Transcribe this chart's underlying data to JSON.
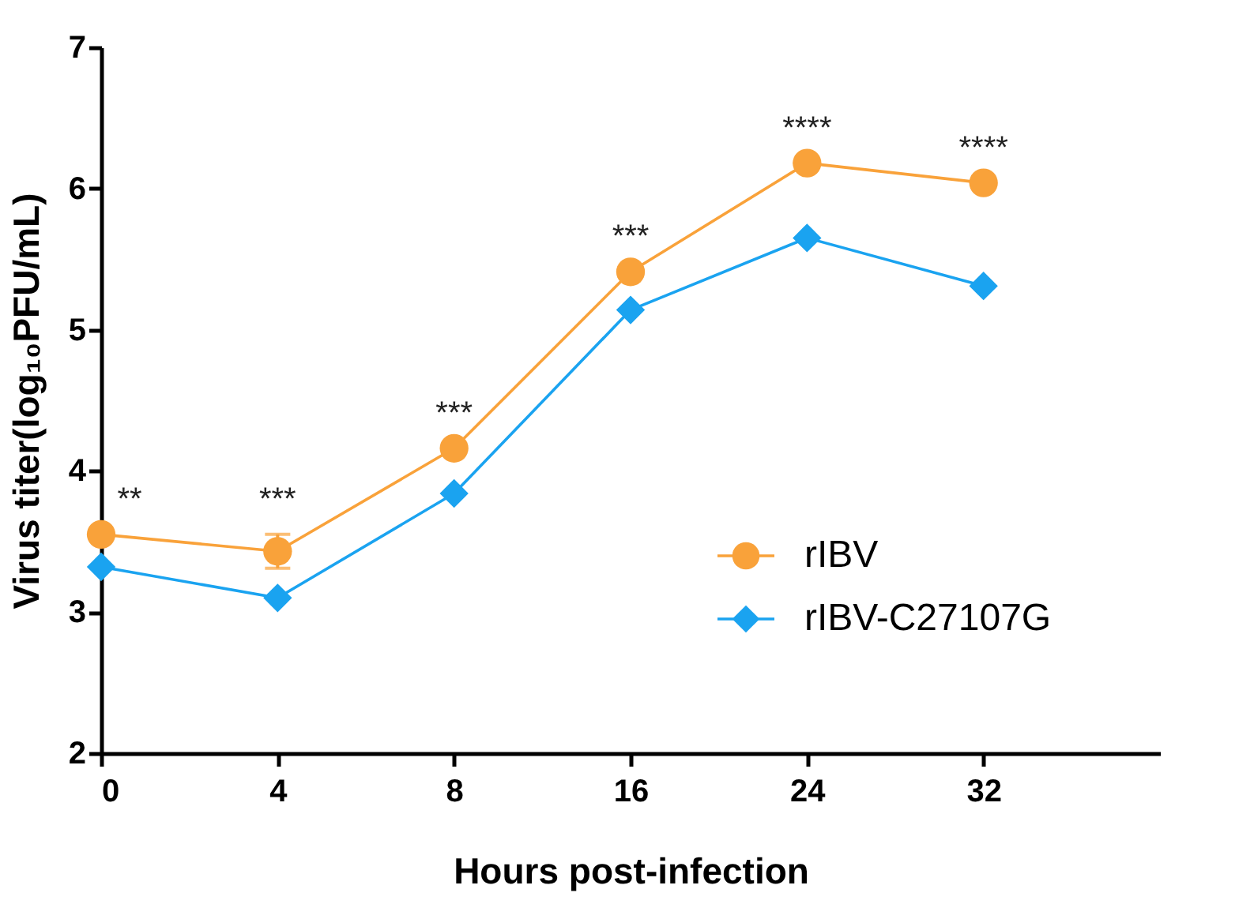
{
  "chart_data": {
    "type": "line",
    "xlabel": "Hours post-infection",
    "ylabel": "Virus titer(log₁₀PFU/mL)",
    "categories": [
      "0",
      "4",
      "8",
      "16",
      "24",
      "32"
    ],
    "series": [
      {
        "name": "rIBV",
        "color": "#f9a23a",
        "marker": "circle",
        "values": [
          3.55,
          3.43,
          4.16,
          5.41,
          6.18,
          6.04
        ],
        "errors": [
          null,
          0.12,
          null,
          null,
          null,
          null
        ]
      },
      {
        "name": "rIBV-C27107G",
        "color": "#1aa3f0",
        "marker": "diamond",
        "values": [
          3.32,
          3.1,
          3.84,
          5.14,
          5.65,
          5.31
        ]
      }
    ],
    "ylim": [
      2,
      7
    ],
    "yticks": [
      2,
      3,
      4,
      5,
      6,
      7
    ],
    "grid": false,
    "legend": "bottom right",
    "line_style": "solid",
    "annotations": [
      {
        "text": "**",
        "x": "0",
        "y": 3.55
      },
      {
        "text": "***",
        "x": "4",
        "y": 3.55
      },
      {
        "text": "***",
        "x": "8",
        "y": 4.16
      },
      {
        "text": "***",
        "x": "16",
        "y": 5.41
      },
      {
        "text": "****",
        "x": "24",
        "y": 6.18
      },
      {
        "text": "****",
        "x": "32",
        "y": 6.04
      }
    ]
  }
}
